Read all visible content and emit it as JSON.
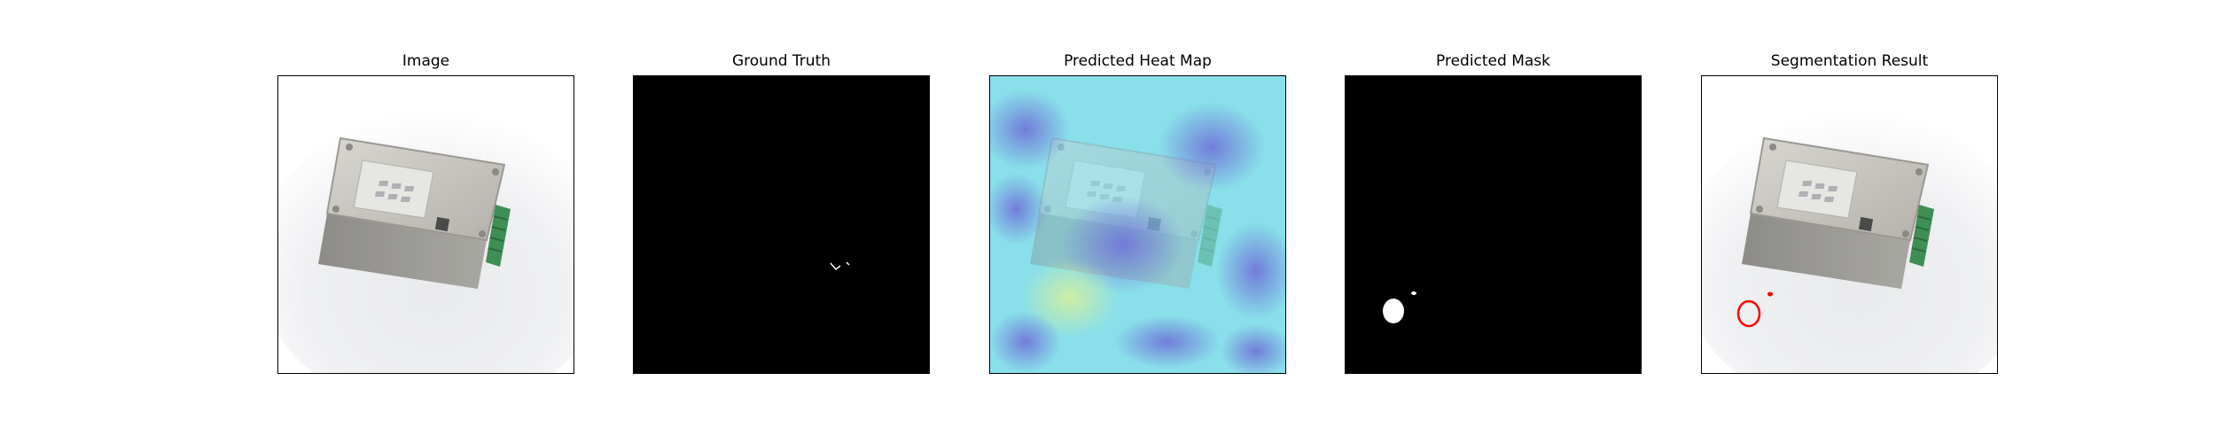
{
  "panels": [
    {
      "id": "image",
      "title": "Image"
    },
    {
      "id": "ground-truth",
      "title": "Ground Truth"
    },
    {
      "id": "heat-map",
      "title": "Predicted Heat Map"
    },
    {
      "id": "mask",
      "title": "Predicted Mask"
    },
    {
      "id": "segmentation",
      "title": "Segmentation Result"
    }
  ],
  "colors": {
    "background": "#ffffff",
    "device_body": "#c9c7c1",
    "terminal_block": "#3f8f55",
    "mask_white": "#ffffff",
    "mask_black": "#000000",
    "contour": "#ff0000"
  }
}
